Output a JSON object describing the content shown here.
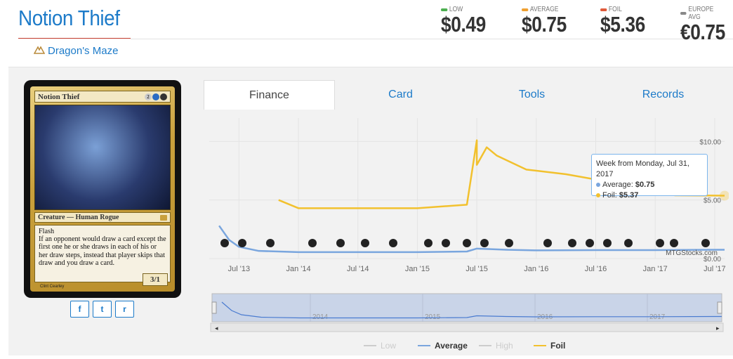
{
  "card": {
    "name": "Notion Thief",
    "set": "Dragon's Maze",
    "mana": "2",
    "type_line": "Creature — Human Rogue",
    "rules": [
      "Flash",
      "If an opponent would draw a card except the first one he or she draws in each of his or her draw steps, instead that player skips that draw and you draw a card."
    ],
    "power_toughness": "3/1",
    "artist": "Clint Cearley"
  },
  "prices": [
    {
      "label": "LOW",
      "value": "$0.49",
      "color": "#4caf50"
    },
    {
      "label": "AVERAGE",
      "value": "$0.75",
      "color": "#f0a030"
    },
    {
      "label": "FOIL",
      "value": "$5.36",
      "color": "#e05a3a"
    },
    {
      "label": "EUROPE AVG",
      "value": "€0.75",
      "color": "#888888"
    }
  ],
  "tabs": [
    "Finance",
    "Card",
    "Tools",
    "Records"
  ],
  "social": [
    "f",
    "t",
    "r"
  ],
  "tooltip": {
    "header": "Week from Monday, Jul 31, 2017",
    "average_label": "Average:",
    "average_value": "$0.75",
    "foil_label": "Foil:",
    "foil_value": "$5.37"
  },
  "chart_data": {
    "type": "line",
    "x_ticks": [
      "Jul '13",
      "Jan '14",
      "Jul '14",
      "Jan '15",
      "Jul '15",
      "Jan '16",
      "Jul '16",
      "Jan '17",
      "Jul '17"
    ],
    "y_ticks": [
      "$10.00",
      "$5.00",
      "$0.00"
    ],
    "ylim": [
      0,
      12
    ],
    "watermark": "MTGStocks.com",
    "navigator_years": [
      "2014",
      "2015",
      "2016",
      "2017"
    ],
    "legend": [
      "Low",
      "Average",
      "High",
      "Foil"
    ],
    "series": [
      {
        "name": "Average",
        "color": "#7aa6de",
        "x": [
          "2013-05",
          "2013-06",
          "2013-07",
          "2013-09",
          "2014-01",
          "2014-07",
          "2015-01",
          "2015-06",
          "2015-07",
          "2015-10",
          "2016-01",
          "2016-07",
          "2017-01",
          "2017-07",
          "2017-08"
        ],
        "values": [
          2.8,
          1.6,
          1.0,
          0.65,
          0.55,
          0.55,
          0.55,
          0.6,
          0.85,
          0.75,
          0.7,
          0.72,
          0.72,
          0.75,
          0.75
        ]
      },
      {
        "name": "Foil",
        "color": "#f2c12e",
        "x": [
          "2013-11",
          "2014-01",
          "2014-07",
          "2015-01",
          "2015-06",
          "2015-07",
          "2015-07",
          "2015-08",
          "2015-09",
          "2015-12",
          "2016-04",
          "2016-08",
          "2016-12",
          "2017-03",
          "2017-08"
        ],
        "values": [
          5.0,
          4.3,
          4.3,
          4.3,
          4.6,
          10.1,
          8.0,
          9.5,
          8.8,
          7.6,
          7.2,
          6.6,
          6.0,
          5.4,
          5.37
        ]
      }
    ]
  }
}
